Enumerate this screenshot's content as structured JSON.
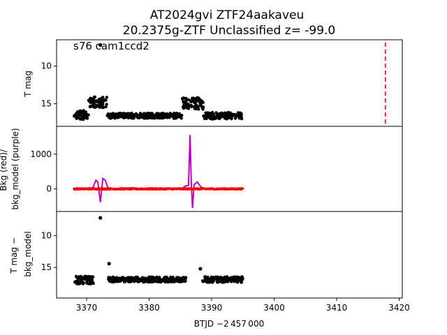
{
  "title": {
    "line1": "AT2024gvi  ZTF24aakaveu",
    "line2": "20.2375g-ZTF Unclassified z= -99.0"
  },
  "annotation": "s76 cam1ccd2",
  "xlabel": "BTJD −2 457 000",
  "colors": {
    "points": "#000000",
    "bkg": "#ff0000",
    "bkg_model": "#bf00bf",
    "marker_line": "#ff0000"
  },
  "chart_data": [
    {
      "type": "scatter",
      "panel": "top",
      "ylabel": "T mag",
      "y_inverted": true,
      "xlim": [
        3365.2,
        3420.5
      ],
      "ylim": [
        18.0,
        6.5
      ],
      "xticks": [
        3370,
        3380,
        3390,
        3400,
        3410,
        3420
      ],
      "yticks": [
        10,
        15
      ],
      "vline_x": 3417.8,
      "segments": [
        {
          "x": [
            3368,
            3370.3
          ],
          "y": 16.5,
          "spread": 0.6
        },
        {
          "x": [
            3370.3,
            3373.3
          ],
          "y": 14.8,
          "spread": 0.7
        },
        {
          "x": [
            3373.3,
            3385.3
          ],
          "y": 16.6,
          "spread": 0.35
        },
        {
          "x": [
            3385.3,
            3388.7
          ],
          "y": 15.0,
          "spread": 0.8
        },
        {
          "x": [
            3388.7,
            3395.0
          ],
          "y": 16.6,
          "spread": 0.45
        }
      ],
      "outliers": [
        {
          "x": 3372.2,
          "y": 7.2
        }
      ]
    },
    {
      "type": "line",
      "panel": "middle",
      "ylabel": "Bkg (red)/\nbkg_model (purple)",
      "xlim": [
        3365.2,
        3420.5
      ],
      "ylim": [
        -650,
        1800
      ],
      "yticks": [
        0,
        1000
      ],
      "series": [
        {
          "name": "Bkg",
          "color": "red",
          "x_range": [
            3368,
            3395
          ],
          "y": 0
        },
        {
          "name": "bkg_model",
          "color": "purple",
          "x": [
            3368,
            3371,
            3371.5,
            3371.8,
            3372.2,
            3372.6,
            3373.0,
            3373.4,
            3373.9,
            3375,
            3385.2,
            3385.8,
            3386.3,
            3386.55,
            3386.75,
            3386.95,
            3387.2,
            3387.7,
            3388.3,
            3389,
            3395
          ],
          "y": [
            0,
            30,
            250,
            200,
            -380,
            300,
            250,
            30,
            10,
            0,
            0,
            80,
            100,
            1550,
            150,
            -550,
            120,
            200,
            50,
            0,
            0
          ]
        }
      ]
    },
    {
      "type": "scatter",
      "panel": "bottom",
      "ylabel": "T mag −\nbkg_model",
      "y_inverted": true,
      "xlim": [
        3365.2,
        3420.5
      ],
      "ylim": [
        19.8,
        6.2
      ],
      "yticks": [
        10,
        15
      ],
      "segments": [
        {
          "x": [
            3368,
            3371.2
          ],
          "y": 17.0,
          "spread": 0.6
        },
        {
          "x": [
            3373.5,
            3386.0
          ],
          "y": 16.9,
          "spread": 0.4
        },
        {
          "x": [
            3388.5,
            3395.0
          ],
          "y": 16.9,
          "spread": 0.45
        }
      ],
      "outliers": [
        {
          "x": 3372.2,
          "y": 7.2
        },
        {
          "x": 3373.6,
          "y": 14.4
        },
        {
          "x": 3388.2,
          "y": 15.2
        }
      ]
    }
  ]
}
